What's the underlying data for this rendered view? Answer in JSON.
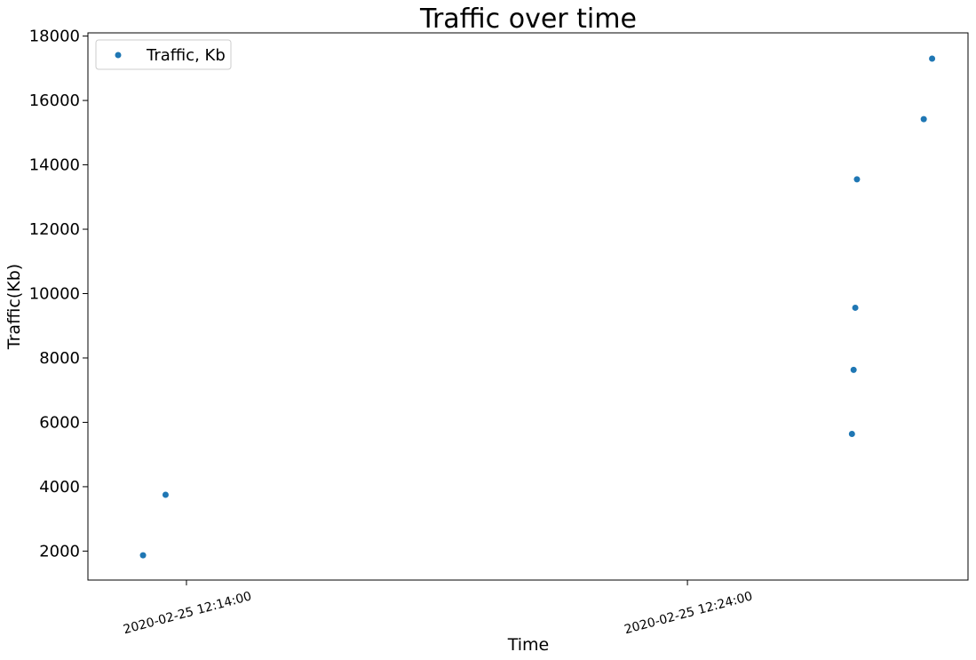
{
  "chart_data": {
    "type": "scatter",
    "title": "Traffic over time",
    "xlabel": "Time",
    "ylabel": "Traffic(Kb)",
    "x_axis_type": "datetime",
    "x_tick_labels": [
      "2020-02-25 12:14:00",
      "2020-02-25 12:24:00"
    ],
    "x_tick_values": [
      "2020-02-25 12:14:00",
      "2020-02-25 12:24:00"
    ],
    "xlim": [
      "2020-02-25 12:12:02",
      "2020-02-25 12:29:36"
    ],
    "y_ticks": [
      2000,
      4000,
      6000,
      8000,
      10000,
      12000,
      14000,
      16000,
      18000
    ],
    "ylim": [
      1100,
      18100
    ],
    "grid": false,
    "legend_position": "top-left",
    "series": [
      {
        "name": "Traffic, Kb",
        "color": "#1f77b4",
        "points": [
          {
            "x": "2020-02-25 12:13:08",
            "y": 1870
          },
          {
            "x": "2020-02-25 12:13:35",
            "y": 3750
          },
          {
            "x": "2020-02-25 12:27:17",
            "y": 5640
          },
          {
            "x": "2020-02-25 12:27:19",
            "y": 7630
          },
          {
            "x": "2020-02-25 12:27:21",
            "y": 9560
          },
          {
            "x": "2020-02-25 12:27:23",
            "y": 13550
          },
          {
            "x": "2020-02-25 12:28:43",
            "y": 15420
          },
          {
            "x": "2020-02-25 12:28:53",
            "y": 17300
          }
        ]
      }
    ]
  }
}
